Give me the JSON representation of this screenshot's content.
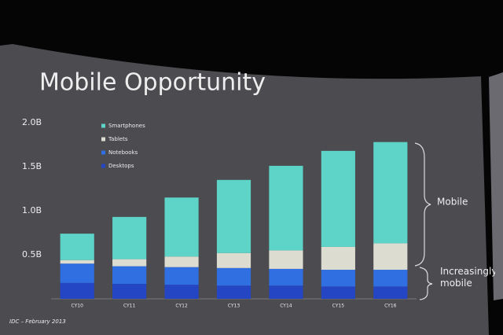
{
  "chart_data": {
    "type": "stacked-bar",
    "title": "Mobile Opportunity",
    "categories": [
      "CY10",
      "CY11",
      "CY12",
      "CY13",
      "CY14",
      "CY15",
      "CY16"
    ],
    "series": [
      {
        "name": "Smartphones",
        "color": "#5ed3c8",
        "values": [
          0.3,
          0.48,
          0.67,
          0.83,
          0.96,
          1.09,
          1.15
        ]
      },
      {
        "name": "Tablets",
        "color": "#dcdcd0",
        "values": [
          0.04,
          0.08,
          0.12,
          0.17,
          0.21,
          0.26,
          0.3
        ]
      },
      {
        "name": "Notebooks",
        "color": "#2f6fe2",
        "values": [
          0.22,
          0.2,
          0.2,
          0.2,
          0.19,
          0.19,
          0.19
        ]
      },
      {
        "name": "Desktops",
        "color": "#2446c4",
        "values": [
          0.18,
          0.17,
          0.16,
          0.15,
          0.15,
          0.14,
          0.14
        ]
      }
    ],
    "ylim": [
      0,
      2
    ],
    "yticks": [
      {
        "value": 0.5,
        "label": "0.5B"
      },
      {
        "value": 1,
        "label": "1.0B"
      },
      {
        "value": 1.5,
        "label": "1.5B"
      },
      {
        "value": 2,
        "label": "2.0B"
      }
    ],
    "annotations": [
      "Mobile",
      "Increasingly mobile"
    ],
    "source": "IDC – February 2013"
  }
}
